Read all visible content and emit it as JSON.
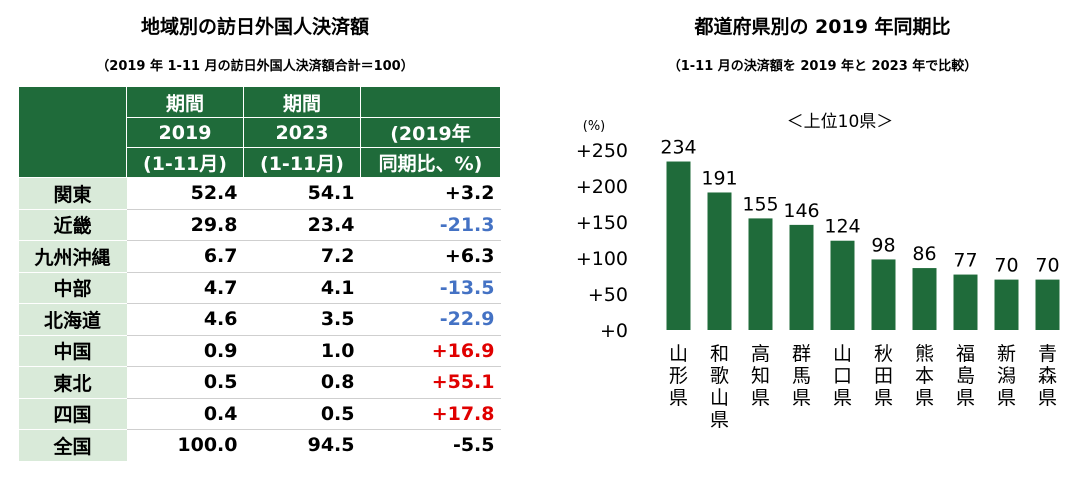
{
  "left": {
    "title": "地域別の訪日外国人決済額",
    "subtitle": "（2019 年 1-11 月の訪日外国人決済額合計＝100）",
    "header": {
      "col1_top": "期間",
      "col1_year": "2019",
      "col1_range": "(1-11月)",
      "col2_top": "期間",
      "col2_year": "2023",
      "col2_range": "(1-11月)",
      "col3_line1": "(2019年",
      "col3_line2": "同期比、%)"
    },
    "rows": [
      {
        "region": "関東",
        "v2019": "52.4",
        "v2023": "54.1",
        "change": "+3.2",
        "kind": "plain"
      },
      {
        "region": "近畿",
        "v2019": "29.8",
        "v2023": "23.4",
        "change": "-21.3",
        "kind": "neg"
      },
      {
        "region": "九州沖縄",
        "v2019": "6.7",
        "v2023": "7.2",
        "change": "+6.3",
        "kind": "plain"
      },
      {
        "region": "中部",
        "v2019": "4.7",
        "v2023": "4.1",
        "change": "-13.5",
        "kind": "neg"
      },
      {
        "region": "北海道",
        "v2019": "4.6",
        "v2023": "3.5",
        "change": "-22.9",
        "kind": "neg"
      },
      {
        "region": "中国",
        "v2019": "0.9",
        "v2023": "1.0",
        "change": "+16.9",
        "kind": "pos"
      },
      {
        "region": "東北",
        "v2019": "0.5",
        "v2023": "0.8",
        "change": "+55.1",
        "kind": "pos"
      },
      {
        "region": "四国",
        "v2019": "0.4",
        "v2023": "0.5",
        "change": "+17.8",
        "kind": "pos"
      },
      {
        "region": "全国",
        "v2019": "100.0",
        "v2023": "94.5",
        "change": "-5.5",
        "kind": "plain"
      }
    ]
  },
  "right": {
    "title": "都道府県別の 2019 年同期比",
    "subtitle": "（1-11 月の決済額を 2019 年と 2023 年で比較）"
  },
  "colors": {
    "green": "#1f6b3a",
    "light_green": "#d9ead9",
    "blue": "#4472c4",
    "red": "#e00000"
  },
  "chart_data": {
    "type": "bar",
    "title": "都道府県別の 2019 年同期比",
    "annotation": "＜上位10県＞",
    "ylabel": "(%)",
    "yticks": [
      "+0",
      "+50",
      "+100",
      "+150",
      "+200",
      "+250"
    ],
    "ylim": [
      0,
      250
    ],
    "categories": [
      "山形県",
      "和歌山県",
      "高知県",
      "群馬県",
      "山口県",
      "秋田県",
      "熊本県",
      "福島県",
      "新潟県",
      "青森県"
    ],
    "values": [
      234,
      191,
      155,
      146,
      124,
      98,
      86,
      77,
      70,
      70
    ],
    "value_labels": [
      "234",
      "191",
      "155",
      "146",
      "124",
      "98",
      "86",
      "77",
      "70",
      "70"
    ]
  }
}
